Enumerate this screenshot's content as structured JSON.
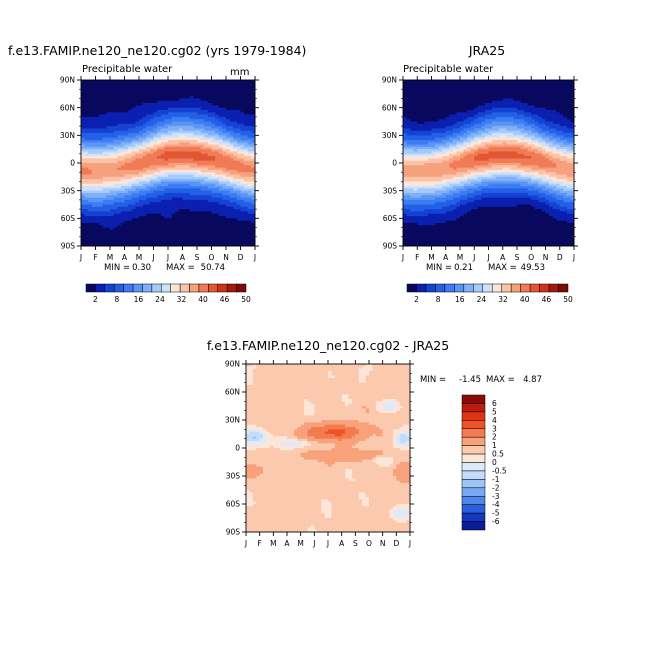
{
  "figure": {
    "panel_model": {
      "title": "f.e13.FAMIP.ne120_ne120.cg02 (yrs 1979-1984)",
      "subtitle": "Precipitable water",
      "units": "mm",
      "stats": {
        "min_label": "MIN =",
        "min": "0.30",
        "max_label": "MAX =",
        "max": "50.74"
      }
    },
    "panel_obs": {
      "title": "JRA25",
      "subtitle": "Precipitable water",
      "stats": {
        "min_label": "MIN =",
        "min": "0.21",
        "max_label": "MAX =",
        "max": "49.53"
      }
    },
    "panel_diff": {
      "title": "f.e13.FAMIP.ne120_ne120.cg02 - JRA25",
      "stats": {
        "min_label": "MIN =",
        "min": "-1.45",
        "max_label": "MAX =",
        "max": "4.87"
      }
    },
    "colorbar_abs": {
      "labels": [
        "2",
        "8",
        "16",
        "24",
        "32",
        "40",
        "46",
        "50"
      ],
      "colors": [
        "#08085e",
        "#0b1fb0",
        "#1442d2",
        "#2460e6",
        "#3d7cf2",
        "#5b95f6",
        "#7fb0f8",
        "#a6cafa",
        "#cfe2fb",
        "#fde6d9",
        "#fbc4a8",
        "#f7a07e",
        "#f07b56",
        "#e35634",
        "#cc3418",
        "#a51a0c",
        "#7d0a04"
      ]
    },
    "colorbar_diff": {
      "labels": [
        "6",
        "5",
        "4",
        "3",
        "2",
        "1",
        "0.5",
        "0",
        "-0.5",
        "-1",
        "-2",
        "-3",
        "-4",
        "-5",
        "-6"
      ],
      "colors": [
        "#8a0c06",
        "#bd1d0e",
        "#dd3414",
        "#ef5226",
        "#f47a4f",
        "#f8a27c",
        "#fbc9ae",
        "#fde6d7",
        "#dceaf9",
        "#c3dcfa",
        "#9ec4f6",
        "#78a8f2",
        "#4f86ea",
        "#2b5fdd",
        "#1438c2",
        "#0c1e96"
      ]
    }
  },
  "chart_data": [
    {
      "type": "heatmap",
      "title": "f.e13.FAMIP.ne120_ne120.cg02 (yrs 1979-1984)",
      "variable": "Precipitable water",
      "units": "mm",
      "x_ticks": [
        "J",
        "F",
        "M",
        "A",
        "M",
        "J",
        "J",
        "A",
        "S",
        "O",
        "N",
        "D",
        "J"
      ],
      "y_ticks": [
        "90N",
        "60N",
        "30N",
        "0",
        "30S",
        "60S",
        "90S"
      ],
      "xlim": [
        0,
        12
      ],
      "ylim": [
        -90,
        90
      ],
      "levels": [
        2,
        5,
        8,
        12,
        16,
        20,
        24,
        28,
        32,
        36,
        40,
        43,
        46,
        48,
        50
      ],
      "min": 0.3,
      "max": 50.74
    },
    {
      "type": "heatmap",
      "title": "JRA25",
      "variable": "Precipitable water",
      "x_ticks": [
        "J",
        "F",
        "M",
        "A",
        "M",
        "J",
        "J",
        "A",
        "S",
        "O",
        "N",
        "D",
        "J"
      ],
      "y_ticks": [
        "90N",
        "60N",
        "30N",
        "0",
        "30S",
        "60S",
        "90S"
      ],
      "xlim": [
        0,
        12
      ],
      "ylim": [
        -90,
        90
      ],
      "levels": [
        2,
        5,
        8,
        12,
        16,
        20,
        24,
        28,
        32,
        36,
        40,
        43,
        46,
        48,
        50
      ],
      "min": 0.21,
      "max": 49.53
    },
    {
      "type": "heatmap",
      "title": "f.e13.FAMIP.ne120_ne120.cg02 - JRA25",
      "x_ticks": [
        "J",
        "F",
        "M",
        "A",
        "M",
        "J",
        "J",
        "A",
        "S",
        "O",
        "N",
        "D",
        "J"
      ],
      "y_ticks": [
        "90N",
        "60N",
        "30N",
        "0",
        "30S",
        "60S",
        "90S"
      ],
      "xlim": [
        0,
        12
      ],
      "ylim": [
        -90,
        90
      ],
      "levels": [
        -6,
        -5,
        -4,
        -3,
        -2,
        -1,
        -0.5,
        0,
        0.5,
        1,
        2,
        3,
        4,
        5,
        6
      ],
      "min": -1.45,
      "max": 4.87
    }
  ]
}
